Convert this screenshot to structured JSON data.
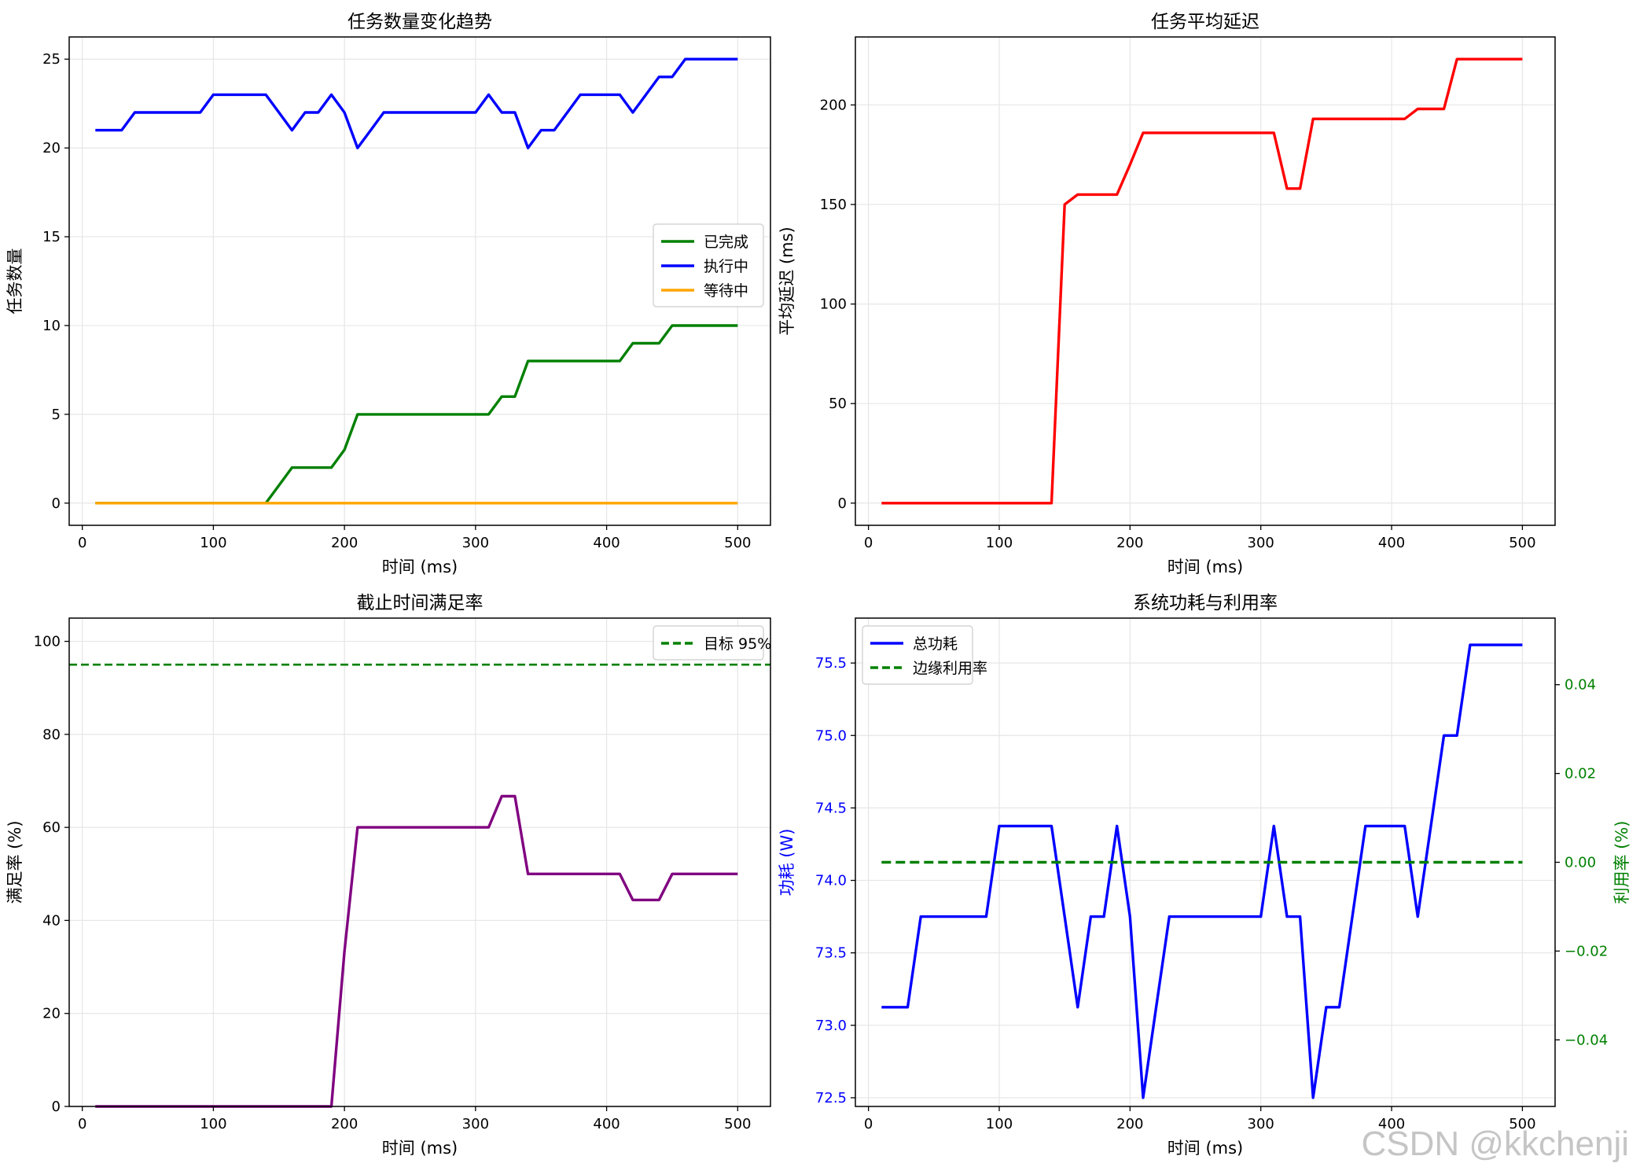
{
  "watermark": "CSDN @kkchenji",
  "chart_data": [
    {
      "type": "line",
      "title": "任务数量变化趋势",
      "xlabel": "时间 (ms)",
      "ylabel": "任务数量",
      "xlim": [
        -10,
        525
      ],
      "ylim": [
        -1.25,
        26.25
      ],
      "xticks": [
        0,
        100,
        200,
        300,
        400,
        500
      ],
      "yticks": [
        0,
        5,
        10,
        15,
        20,
        25
      ],
      "grid": true,
      "legend": "center-right",
      "x": [
        10,
        20,
        30,
        40,
        50,
        60,
        70,
        80,
        90,
        100,
        110,
        120,
        130,
        140,
        150,
        160,
        170,
        180,
        190,
        200,
        210,
        220,
        230,
        240,
        250,
        260,
        270,
        280,
        290,
        300,
        310,
        320,
        330,
        340,
        350,
        360,
        370,
        380,
        390,
        400,
        410,
        420,
        430,
        440,
        450,
        460,
        470,
        480,
        490,
        500
      ],
      "series": [
        {
          "name": "已完成",
          "color": "#008000",
          "values": [
            0,
            0,
            0,
            0,
            0,
            0,
            0,
            0,
            0,
            0,
            0,
            0,
            0,
            0,
            1,
            2,
            2,
            2,
            2,
            3,
            5,
            5,
            5,
            5,
            5,
            5,
            5,
            5,
            5,
            5,
            5,
            6,
            6,
            8,
            8,
            8,
            8,
            8,
            8,
            8,
            8,
            9,
            9,
            9,
            10,
            10,
            10,
            10,
            10,
            10
          ]
        },
        {
          "name": "执行中",
          "color": "#0000ff",
          "values": [
            21,
            21,
            21,
            22,
            22,
            22,
            22,
            22,
            22,
            23,
            23,
            23,
            23,
            23,
            22,
            21,
            22,
            22,
            23,
            22,
            20,
            21,
            22,
            22,
            22,
            22,
            22,
            22,
            22,
            22,
            23,
            22,
            22,
            20,
            21,
            21,
            22,
            23,
            23,
            23,
            23,
            22,
            23,
            24,
            24,
            25,
            25,
            25,
            25,
            25
          ]
        },
        {
          "name": "等待中",
          "color": "#ffa500",
          "values": [
            0,
            0,
            0,
            0,
            0,
            0,
            0,
            0,
            0,
            0,
            0,
            0,
            0,
            0,
            0,
            0,
            0,
            0,
            0,
            0,
            0,
            0,
            0,
            0,
            0,
            0,
            0,
            0,
            0,
            0,
            0,
            0,
            0,
            0,
            0,
            0,
            0,
            0,
            0,
            0,
            0,
            0,
            0,
            0,
            0,
            0,
            0,
            0,
            0,
            0
          ]
        }
      ]
    },
    {
      "type": "line",
      "title": "任务平均延迟",
      "xlabel": "时间 (ms)",
      "ylabel": "平均延迟 (ms)",
      "xlim": [
        -10,
        525
      ],
      "ylim": [
        -11.15,
        234.15
      ],
      "xticks": [
        0,
        100,
        200,
        300,
        400,
        500
      ],
      "yticks": [
        0,
        50,
        100,
        150,
        200
      ],
      "grid": true,
      "x": [
        10,
        20,
        30,
        40,
        50,
        60,
        70,
        80,
        90,
        100,
        110,
        120,
        130,
        140,
        150,
        160,
        170,
        180,
        190,
        200,
        210,
        220,
        230,
        240,
        250,
        260,
        270,
        280,
        290,
        300,
        310,
        320,
        330,
        340,
        350,
        360,
        370,
        380,
        390,
        400,
        410,
        420,
        430,
        440,
        450,
        460,
        470,
        480,
        490,
        500
      ],
      "series": [
        {
          "name": "",
          "color": "#ff0000",
          "values": [
            0,
            0,
            0,
            0,
            0,
            0,
            0,
            0,
            0,
            0,
            0,
            0,
            0,
            0,
            150,
            155,
            155,
            155,
            155,
            170,
            186,
            186,
            186,
            186,
            186,
            186,
            186,
            186,
            186,
            186,
            186,
            158,
            158,
            193,
            193,
            193,
            193,
            193,
            193,
            193,
            193,
            198,
            198,
            198,
            223,
            223,
            223,
            223,
            223,
            223
          ]
        }
      ]
    },
    {
      "type": "line",
      "title": "截止时间满足率",
      "xlabel": "时间 (ms)",
      "ylabel": "满足率 (%)",
      "xlim": [
        -10,
        525
      ],
      "ylim": [
        0,
        105
      ],
      "xticks": [
        0,
        100,
        200,
        300,
        400,
        500
      ],
      "yticks": [
        0,
        20,
        40,
        60,
        80,
        100
      ],
      "grid": true,
      "legend": "top-right",
      "x": [
        10,
        20,
        30,
        40,
        50,
        60,
        70,
        80,
        90,
        100,
        110,
        120,
        130,
        140,
        150,
        160,
        170,
        180,
        190,
        200,
        210,
        220,
        230,
        240,
        250,
        260,
        270,
        280,
        290,
        300,
        310,
        320,
        330,
        340,
        350,
        360,
        370,
        380,
        390,
        400,
        410,
        420,
        430,
        440,
        450,
        460,
        470,
        480,
        490,
        500
      ],
      "series": [
        {
          "name": "",
          "color": "#800080",
          "values": [
            0,
            0,
            0,
            0,
            0,
            0,
            0,
            0,
            0,
            0,
            0,
            0,
            0,
            0,
            0,
            0,
            0,
            0,
            0,
            33.3,
            60,
            60,
            60,
            60,
            60,
            60,
            60,
            60,
            60,
            60,
            60,
            66.7,
            66.7,
            50,
            50,
            50,
            50,
            50,
            50,
            50,
            50,
            44.4,
            44.4,
            44.4,
            50,
            50,
            50,
            50,
            50,
            50
          ]
        }
      ],
      "reference_line": {
        "label": "目标 95%",
        "value": 95,
        "color": "#008000",
        "style": "dashed"
      }
    },
    {
      "type": "line",
      "title": "系统功耗与利用率",
      "xlabel": "时间 (ms)",
      "ylabel": "功耗 (W)",
      "ylabel_right": "利用率 (%)",
      "xlim": [
        -10,
        525
      ],
      "ylim": [
        72.44,
        75.81
      ],
      "ylim_right": [
        -0.055,
        0.055
      ],
      "xticks": [
        0,
        100,
        200,
        300,
        400,
        500
      ],
      "yticks": [
        72.5,
        73.0,
        73.5,
        74.0,
        74.5,
        75.0,
        75.5
      ],
      "yticks_right": [
        -0.04,
        -0.02,
        0.0,
        0.02,
        0.04
      ],
      "ytick_labels": [
        "72.5",
        "73.0",
        "73.5",
        "74.0",
        "74.5",
        "75.0",
        "75.5"
      ],
      "ytick_labels_right": [
        "−0.04",
        "−0.02",
        "0.00",
        "0.02",
        "0.04"
      ],
      "left_axis_color": "#0000ff",
      "right_axis_color": "#008000",
      "grid": true,
      "legend": "top-left",
      "x": [
        10,
        20,
        30,
        40,
        50,
        60,
        70,
        80,
        90,
        100,
        110,
        120,
        130,
        140,
        150,
        160,
        170,
        180,
        190,
        200,
        210,
        220,
        230,
        240,
        250,
        260,
        270,
        280,
        290,
        300,
        310,
        320,
        330,
        340,
        350,
        360,
        370,
        380,
        390,
        400,
        410,
        420,
        430,
        440,
        450,
        460,
        470,
        480,
        490,
        500
      ],
      "series": [
        {
          "name": "总功耗",
          "color": "#0000ff",
          "axis": "left",
          "values": [
            73.125,
            73.125,
            73.125,
            73.75,
            73.75,
            73.75,
            73.75,
            73.75,
            73.75,
            74.375,
            74.375,
            74.375,
            74.375,
            74.375,
            73.75,
            73.125,
            73.75,
            73.75,
            74.375,
            73.75,
            72.5,
            73.125,
            73.75,
            73.75,
            73.75,
            73.75,
            73.75,
            73.75,
            73.75,
            73.75,
            74.375,
            73.75,
            73.75,
            72.5,
            73.125,
            73.125,
            73.75,
            74.375,
            74.375,
            74.375,
            74.375,
            73.75,
            74.375,
            75.0,
            75.0,
            75.625,
            75.625,
            75.625,
            75.625,
            75.625
          ]
        },
        {
          "name": "边缘利用率",
          "color": "#008000",
          "axis": "right",
          "style": "dashed",
          "values": [
            0,
            0,
            0,
            0,
            0,
            0,
            0,
            0,
            0,
            0,
            0,
            0,
            0,
            0,
            0,
            0,
            0,
            0,
            0,
            0,
            0,
            0,
            0,
            0,
            0,
            0,
            0,
            0,
            0,
            0,
            0,
            0,
            0,
            0,
            0,
            0,
            0,
            0,
            0,
            0,
            0,
            0,
            0,
            0,
            0,
            0,
            0,
            0,
            0,
            0
          ]
        }
      ]
    }
  ]
}
